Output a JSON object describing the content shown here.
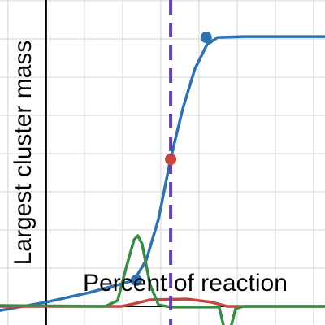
{
  "chart_data": {
    "type": "line",
    "xlabel": "Percent of reaction",
    "ylabel": "Largest cluster mass",
    "xlim": [
      -1.21,
      7.3
    ],
    "ylim": [
      -0.49,
      8.02
    ],
    "xticks": [
      -1,
      0,
      1,
      2,
      3,
      4,
      5,
      6,
      7
    ],
    "yticks": [
      0,
      1,
      2,
      3,
      4,
      5,
      6,
      7,
      8
    ],
    "grid": true,
    "series": [
      {
        "color": "#2d70b3",
        "x": [
          -1.21,
          0,
          1.13,
          2.3,
          2.62,
          2.94,
          3.26,
          3.57,
          3.89,
          4.21,
          4.49,
          5.17,
          7.3
        ],
        "values": [
          -0.11,
          0.11,
          0.36,
          0.68,
          1.21,
          2.28,
          3.87,
          5.15,
          6.21,
          6.85,
          7.04,
          7.06,
          7.06
        ]
      },
      {
        "color": "#c74440",
        "x": [
          -1.21,
          1.98,
          2.4,
          2.72,
          3.68,
          4.32,
          4.74,
          7.3
        ],
        "values": [
          0,
          0,
          0.09,
          0.17,
          0.19,
          0.11,
          0,
          0
        ]
      },
      {
        "color": "#388c46",
        "x": [
          -1.21,
          1.55,
          1.87,
          2.09,
          2.3,
          2.4,
          2.51,
          2.72,
          2.94,
          3.26,
          4.53,
          4.64,
          4.75,
          4.85,
          4.96,
          5.17,
          7.3
        ],
        "values": [
          0.02,
          0,
          0.15,
          1.0,
          1.74,
          1.85,
          1.64,
          0.57,
          0.04,
          -0.02,
          -0.02,
          -0.49,
          null,
          -0.49,
          -0.06,
          0,
          0
        ]
      }
    ],
    "vertical_line": {
      "x": 3.26,
      "color": "#6042a6"
    },
    "points": [
      {
        "x": 2.36,
        "y": 0.68,
        "color": "#2d70b3"
      },
      {
        "x": 4.19,
        "y": 7.04,
        "color": "#2d70b3"
      },
      {
        "x": 3.26,
        "y": 3.85,
        "color": "#c74440"
      }
    ]
  }
}
